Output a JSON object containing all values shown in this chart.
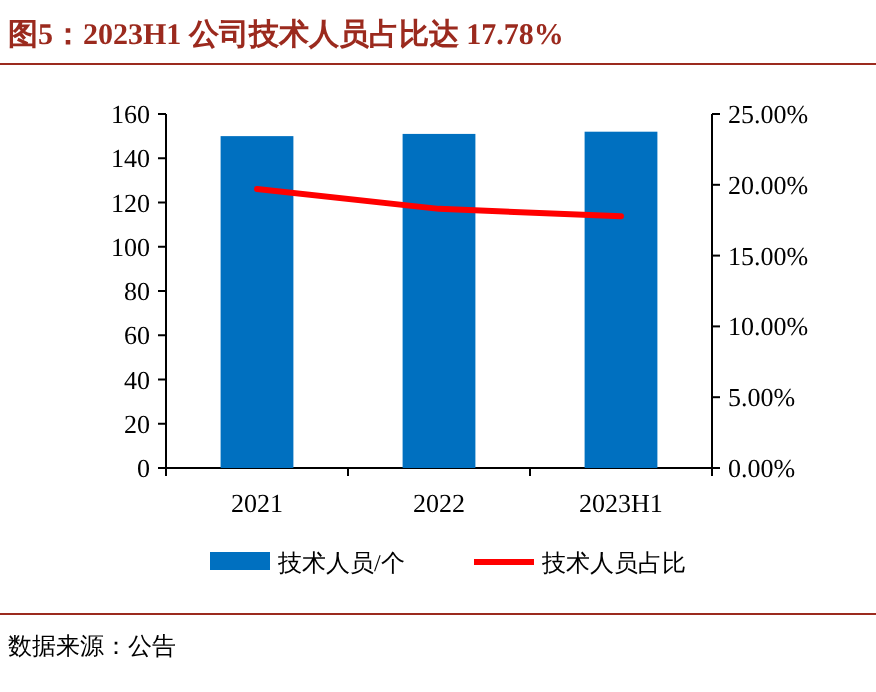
{
  "chart_data": {
    "type": "bar",
    "title": "图5：2023H1 公司技术人员占比达 17.78%",
    "categories": [
      "2021",
      "2022",
      "2023H1"
    ],
    "series": [
      {
        "name": "技术人员/个",
        "color": "#0070c0",
        "values": [
          150,
          151,
          152
        ]
      },
      {
        "name": "技术人员占比",
        "type": "line",
        "axis": "y2",
        "color": "#ff0000",
        "values": [
          19.7,
          18.3,
          17.78
        ]
      }
    ],
    "ylim": [
      0,
      160
    ],
    "yticks": [
      0,
      20,
      40,
      60,
      80,
      100,
      120,
      140,
      160
    ],
    "y2lim": [
      0,
      25
    ],
    "y2ticks": [
      {
        "value": 0,
        "label": "0.00%"
      },
      {
        "value": 5,
        "label": "5.00%"
      },
      {
        "value": 10,
        "label": "10.00%"
      },
      {
        "value": 15,
        "label": "15.00%"
      },
      {
        "value": 20,
        "label": "20.00%"
      },
      {
        "value": 25,
        "label": "25.00%"
      }
    ],
    "grid": false,
    "legend": "bottom",
    "marker": "none",
    "annotations": [
      "数据来源：公告"
    ]
  }
}
